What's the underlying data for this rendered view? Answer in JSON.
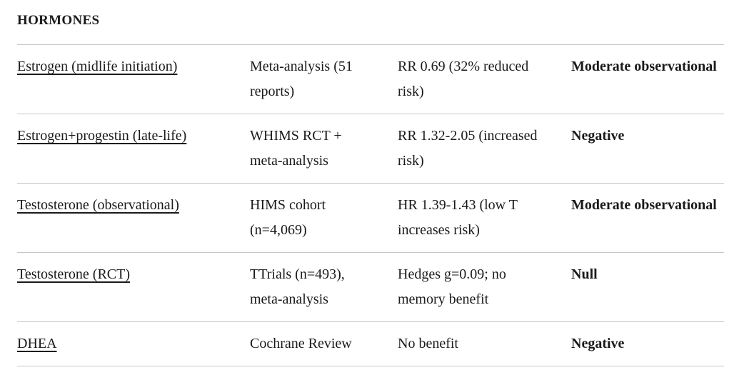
{
  "section": {
    "title": "HORMONES"
  },
  "table": {
    "rows": [
      {
        "name": "Estrogen (midlife initiation)",
        "study": "Meta-analysis (51 reports)",
        "result": "RR 0.69 (32% reduced risk)",
        "evidence": "Moderate observational"
      },
      {
        "name": "Estrogen+progestin (late-life)",
        "study": "WHIMS RCT + meta-analysis",
        "result": "RR 1.32-2.05 (increased risk)",
        "evidence": "Negative"
      },
      {
        "name": "Testosterone (observational)",
        "study": "HIMS cohort (n=4,069)",
        "result": "HR 1.39-1.43 (low T increases risk)",
        "evidence": "Moderate observational"
      },
      {
        "name": "Testosterone (RCT)",
        "study": "TTrials (n=493), meta-analysis",
        "result": "Hedges g=0.09; no memory benefit",
        "evidence": "Null"
      },
      {
        "name": "DHEA",
        "study": "Cochrane Review",
        "result": "No benefit",
        "evidence": "Negative"
      }
    ]
  },
  "colors": {
    "text": "#1a1a1a",
    "border": "#c6c6c6",
    "background": "#ffffff"
  }
}
